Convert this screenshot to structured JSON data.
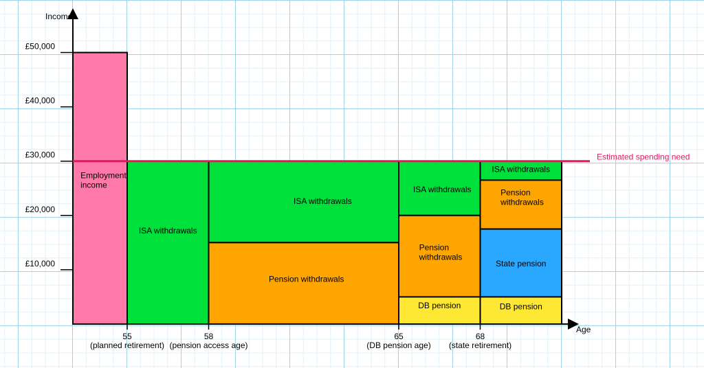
{
  "chart_data": {
    "type": "bar",
    "title": "",
    "ylabel": "Income",
    "xlabel": "Age",
    "ylim": [
      0,
      50000
    ],
    "yticks": [
      {
        "value": 10000,
        "label": "£10,000"
      },
      {
        "value": 20000,
        "label": "£20,000"
      },
      {
        "value": 30000,
        "label": "£30,000"
      },
      {
        "value": 40000,
        "label": "£40,000"
      },
      {
        "value": 50000,
        "label": "£50,000"
      }
    ],
    "xticks": [
      {
        "age": 55,
        "label": "55",
        "sublabel": "(planned retirement)"
      },
      {
        "age": 58,
        "label": "58",
        "sublabel": "(pension access age)"
      },
      {
        "age": 65,
        "label": "65",
        "sublabel": "(DB pension age)"
      },
      {
        "age": 68,
        "label": "68",
        "sublabel": "(state retirement)"
      }
    ],
    "reference_line": {
      "value": 30000,
      "label": "Estimated spending need",
      "color": "#e8155f"
    },
    "colors": {
      "employment": "#ff7aa8",
      "isa": "#00e03a",
      "pension": "#ffa500",
      "state": "#2aa7ff",
      "db": "#ffe833"
    },
    "segments": [
      {
        "x0": 53,
        "x1": 55,
        "y0": 0,
        "y1": 50000,
        "kind": "employment",
        "label": [
          "Employment",
          "income"
        ],
        "lx": 0.37,
        "ly": 26000,
        "anchor": "start"
      },
      {
        "x0": 55,
        "x1": 58,
        "y0": 0,
        "y1": 30000,
        "kind": "isa",
        "label": [
          "ISA withdrawals"
        ],
        "ly": 16700
      },
      {
        "x0": 58,
        "x1": 65,
        "y0": 15000,
        "y1": 30000,
        "kind": "isa",
        "label": [
          "ISA withdrawals"
        ],
        "lx": 62.2,
        "ly": 22100
      },
      {
        "x0": 58,
        "x1": 65,
        "y0": 0,
        "y1": 15000,
        "kind": "pension",
        "label": [
          "Pension withdrawals"
        ],
        "lx": 61.6,
        "ly": 7800
      },
      {
        "x0": 65,
        "x1": 68,
        "y0": 20000,
        "y1": 30000,
        "kind": "isa",
        "label": [
          "ISA withdrawals"
        ],
        "lx": 66.6,
        "ly": 24300
      },
      {
        "x0": 65,
        "x1": 68,
        "y0": 5000,
        "y1": 20000,
        "kind": "pension",
        "label": [
          "Pension",
          "withdrawals"
        ],
        "lx": 65.75,
        "ly": 12700,
        "anchor": "start"
      },
      {
        "x0": 65,
        "x1": 68,
        "y0": 0,
        "y1": 5000,
        "kind": "db",
        "label": [
          "DB pension"
        ],
        "ly": 2900
      },
      {
        "x0": 68,
        "x1": 71,
        "y0": 26500,
        "y1": 30000,
        "kind": "isa",
        "label": [
          "ISA withdrawals"
        ],
        "ly": 28000
      },
      {
        "x0": 68,
        "x1": 71,
        "y0": 17500,
        "y1": 26500,
        "kind": "pension",
        "label": [
          "Pension",
          "withdrawals"
        ],
        "lx": 68.75,
        "ly": 22800,
        "anchor": "start"
      },
      {
        "x0": 68,
        "x1": 71,
        "y0": 5000,
        "y1": 17500,
        "kind": "state",
        "label": [
          "State pension"
        ],
        "ly": 10600
      },
      {
        "x0": 68,
        "x1": 71,
        "y0": 0,
        "y1": 5000,
        "kind": "db",
        "label": [
          "DB pension"
        ],
        "ly": 2700
      }
    ]
  }
}
